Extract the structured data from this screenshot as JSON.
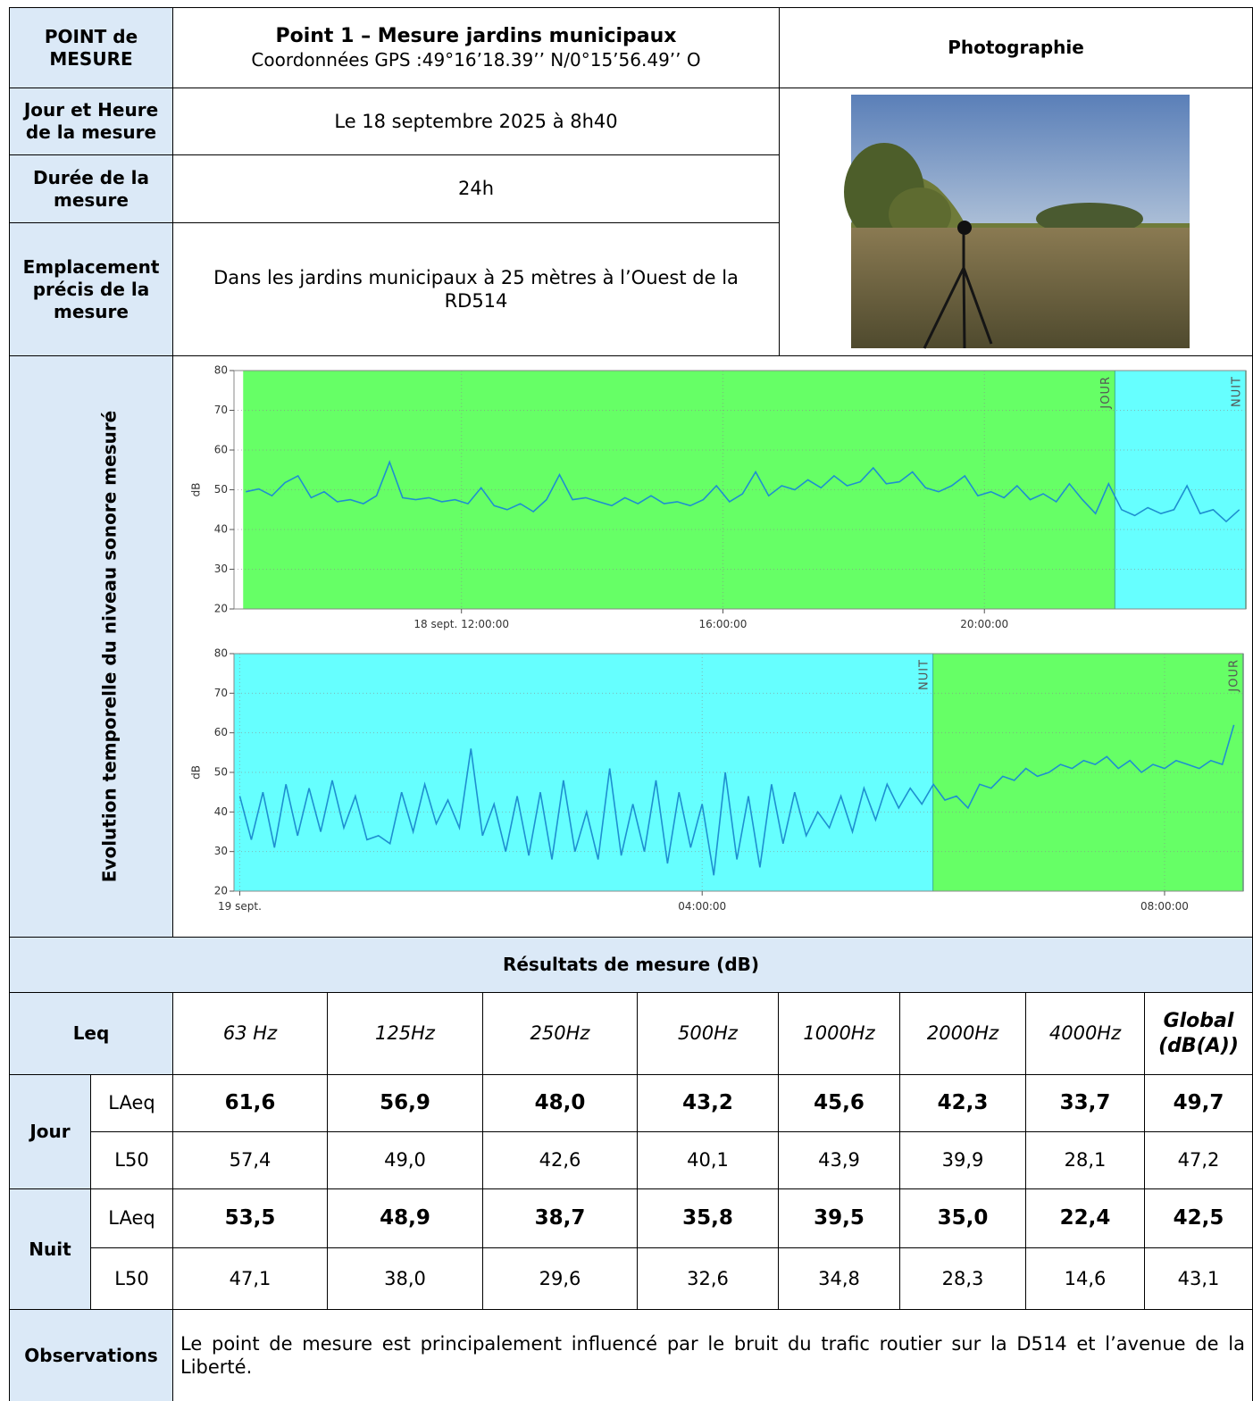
{
  "header": {
    "point_label": "POINT de MESURE",
    "title": "Point 1 – Mesure jardins municipaux",
    "gps": "Coordonnées GPS :49°16’18.39’’ N/0°15’56.49’’ O",
    "photo_label": "Photographie"
  },
  "info": [
    {
      "label": "Jour et Heure de la mesure",
      "value": "Le 18 septembre 2025 à 8h40"
    },
    {
      "label": "Durée de la mesure",
      "value": "24h"
    },
    {
      "label": "Emplacement précis de la mesure",
      "value": "Dans les jardins municipaux à 25 mètres à l’Ouest de la RD514"
    }
  ],
  "chart_section_label": "Evolution temporelle du niveau sonore mesuré",
  "chart_data": [
    {
      "type": "line",
      "ylabel": "dB",
      "ylim": [
        20,
        80
      ],
      "yticks": [
        20,
        30,
        40,
        50,
        60,
        70,
        80
      ],
      "xlim": [
        8.52,
        24
      ],
      "xticks": [
        {
          "value": 12,
          "label": "18 sept. 12:00:00"
        },
        {
          "value": 16,
          "label": "16:00:00"
        },
        {
          "value": 20,
          "label": "20:00:00"
        }
      ],
      "grid": true,
      "periods": [
        {
          "label": "JOUR",
          "range": [
            8.66,
            22
          ],
          "color": "#66ff66"
        },
        {
          "label": "NUIT",
          "range": [
            22,
            24
          ],
          "color": "#66ffff"
        }
      ],
      "series": [
        {
          "color": "#1e8fd0",
          "x": [
            8.7,
            8.9,
            9.1,
            9.3,
            9.5,
            9.7,
            9.9,
            10.1,
            10.3,
            10.5,
            10.7,
            10.9,
            11.1,
            11.3,
            11.5,
            11.7,
            11.9,
            12.1,
            12.3,
            12.5,
            12.7,
            12.9,
            13.1,
            13.3,
            13.5,
            13.7,
            13.9,
            14.1,
            14.3,
            14.5,
            14.7,
            14.9,
            15.1,
            15.3,
            15.5,
            15.7,
            15.9,
            16.1,
            16.3,
            16.5,
            16.7,
            16.9,
            17.1,
            17.3,
            17.5,
            17.7,
            17.9,
            18.1,
            18.3,
            18.5,
            18.7,
            18.9,
            19.1,
            19.3,
            19.5,
            19.7,
            19.9,
            20.1,
            20.3,
            20.5,
            20.7,
            20.9,
            21.1,
            21.3,
            21.5,
            21.7,
            21.9,
            22.1,
            22.3,
            22.5,
            22.7,
            22.9,
            23.1,
            23.3,
            23.5,
            23.7,
            23.9
          ],
          "values": [
            49.5,
            50.2,
            48.5,
            51.8,
            53.5,
            48.0,
            49.5,
            47.0,
            47.5,
            46.5,
            48.5,
            57.0,
            48.0,
            47.5,
            48.0,
            47.0,
            47.5,
            46.5,
            50.5,
            46.0,
            45.0,
            46.5,
            44.5,
            47.5,
            53.8,
            47.5,
            48.0,
            47.0,
            46.0,
            48.0,
            46.5,
            48.5,
            46.5,
            47.0,
            46.0,
            47.5,
            51.0,
            47.0,
            49.0,
            54.5,
            48.5,
            51.0,
            50.0,
            52.5,
            50.5,
            53.5,
            51.0,
            52.0,
            55.5,
            51.5,
            52.0,
            54.5,
            50.5,
            49.5,
            51.0,
            53.5,
            48.5,
            49.5,
            48.0,
            51.0,
            47.5,
            49.0,
            47.0,
            51.5,
            47.5,
            44.0,
            51.5,
            45.0,
            43.5,
            45.5,
            44.0,
            45.0,
            51.0,
            44.0,
            45.0,
            42.0,
            45.0
          ]
        }
      ]
    },
    {
      "type": "line",
      "ylabel": "dB",
      "ylim": [
        20,
        80
      ],
      "yticks": [
        20,
        30,
        40,
        50,
        60,
        70,
        80
      ],
      "xlim": [
        -0.05,
        8.68
      ],
      "xticks": [
        {
          "value": 0,
          "label": "19 sept."
        },
        {
          "value": 4,
          "label": "04:00:00"
        },
        {
          "value": 8,
          "label": "08:00:00"
        }
      ],
      "grid": true,
      "periods": [
        {
          "label": "NUIT",
          "range": [
            -0.05,
            6
          ],
          "color": "#66ffff"
        },
        {
          "label": "JOUR",
          "range": [
            6,
            8.68
          ],
          "color": "#66ff66"
        }
      ],
      "series": [
        {
          "color": "#1e8fd0",
          "x": [
            0,
            0.1,
            0.2,
            0.3,
            0.4,
            0.5,
            0.6,
            0.7,
            0.8,
            0.9,
            1,
            1.1,
            1.2,
            1.3,
            1.4,
            1.5,
            1.6,
            1.7,
            1.8,
            1.9,
            2,
            2.1,
            2.2,
            2.3,
            2.4,
            2.5,
            2.6,
            2.7,
            2.8,
            2.9,
            3,
            3.1,
            3.2,
            3.3,
            3.4,
            3.5,
            3.6,
            3.7,
            3.8,
            3.9,
            4,
            4.1,
            4.2,
            4.3,
            4.4,
            4.5,
            4.6,
            4.7,
            4.8,
            4.9,
            5,
            5.1,
            5.2,
            5.3,
            5.4,
            5.5,
            5.6,
            5.7,
            5.8,
            5.9,
            6,
            6.1,
            6.2,
            6.3,
            6.4,
            6.5,
            6.6,
            6.7,
            6.8,
            6.9,
            7,
            7.1,
            7.2,
            7.3,
            7.4,
            7.5,
            7.6,
            7.7,
            7.8,
            7.9,
            8,
            8.1,
            8.2,
            8.3,
            8.4,
            8.5,
            8.6
          ],
          "values": [
            44,
            33,
            45,
            31,
            47,
            34,
            46,
            35,
            48,
            36,
            44,
            33,
            34,
            32,
            45,
            35,
            47,
            37,
            43,
            36,
            56,
            34,
            42,
            30,
            44,
            29,
            45,
            28,
            48,
            30,
            40,
            28,
            51,
            29,
            42,
            30,
            48,
            27,
            45,
            31,
            42,
            24,
            50,
            28,
            44,
            26,
            47,
            32,
            45,
            34,
            40,
            36,
            44,
            35,
            46,
            38,
            47,
            41,
            46,
            42,
            47,
            43,
            44,
            41,
            47,
            46,
            49,
            48,
            51,
            49,
            50,
            52,
            51,
            53,
            52,
            54,
            51,
            53,
            50,
            52,
            51,
            53,
            52,
            51,
            53,
            52,
            62
          ]
        }
      ]
    }
  ],
  "results": {
    "title": "Résultats de mesure (dB)",
    "corner": "Leq",
    "columns": [
      "63 Hz",
      "125Hz",
      "250Hz",
      "500Hz",
      "1000Hz",
      "2000Hz",
      "4000Hz",
      "Global (dB(A))"
    ],
    "groups": [
      {
        "name": "Jour",
        "rows": [
          {
            "label": "LAeq",
            "values": [
              "61,6",
              "56,9",
              "48,0",
              "43,2",
              "45,6",
              "42,3",
              "33,7",
              "49,7"
            ]
          },
          {
            "label": "L50",
            "values": [
              "57,4",
              "49,0",
              "42,6",
              "40,1",
              "43,9",
              "39,9",
              "28,1",
              "47,2"
            ]
          }
        ]
      },
      {
        "name": "Nuit",
        "rows": [
          {
            "label": "LAeq",
            "values": [
              "53,5",
              "48,9",
              "38,7",
              "35,8",
              "39,5",
              "35,0",
              "22,4",
              "42,5"
            ]
          },
          {
            "label": "L50",
            "values": [
              "47,1",
              "38,0",
              "29,6",
              "32,6",
              "34,8",
              "28,3",
              "14,6",
              "43,1"
            ]
          }
        ]
      }
    ]
  },
  "observations": {
    "label": "Observations",
    "text": "Le point de mesure est principalement influencé par le bruit du trafic routier sur la D514 et l’avenue de la Liberté."
  }
}
